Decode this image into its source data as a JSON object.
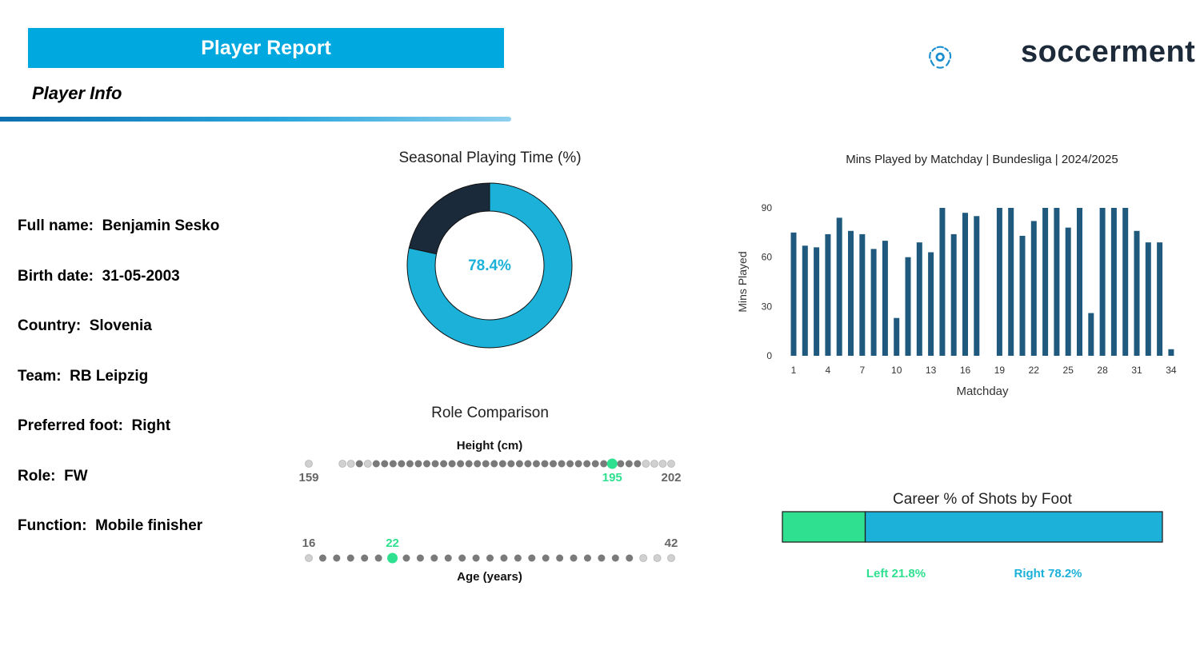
{
  "header": {
    "banner_title": "Player Report",
    "section_title": "Player Info",
    "logo_text": "soccerment",
    "brand_color": "#00a8e0"
  },
  "player_info": [
    {
      "label": "Full name:",
      "value": "Benjamin Sesko"
    },
    {
      "label": "Birth date:",
      "value": "31-05-2003"
    },
    {
      "label": "Country:",
      "value": "Slovenia"
    },
    {
      "label": "Team:",
      "value": "RB Leipzig"
    },
    {
      "label": "Preferred foot:",
      "value": "Right"
    },
    {
      "label": "Role:",
      "value": "FW"
    },
    {
      "label": "Function:",
      "value": "Mobile finisher"
    }
  ],
  "chart_data": [
    {
      "type": "pie",
      "title": "Seasonal Playing Time (%)",
      "center_label": "78.4%",
      "slices": [
        {
          "value": 78.4,
          "color": "#1cb1d9"
        },
        {
          "value": 21.6,
          "color": "#1b2a3b"
        }
      ]
    },
    {
      "type": "bar",
      "title": "Mins Played by Matchday | Bundesliga | 2024/2025",
      "xlabel": "Matchday",
      "ylabel": "Mins Played",
      "ylim": [
        0,
        90
      ],
      "yticks": [
        0,
        30,
        60,
        90
      ],
      "xticks": [
        1,
        4,
        7,
        10,
        13,
        16,
        19,
        22,
        25,
        28,
        31,
        34
      ],
      "categories": [
        1,
        2,
        3,
        4,
        5,
        6,
        7,
        8,
        9,
        10,
        11,
        12,
        13,
        14,
        15,
        16,
        17,
        18,
        19,
        20,
        21,
        22,
        23,
        24,
        25,
        26,
        27,
        28,
        29,
        30,
        31,
        32,
        33,
        34
      ],
      "values": [
        75,
        67,
        66,
        74,
        84,
        76,
        74,
        65,
        70,
        23,
        60,
        69,
        63,
        90,
        74,
        87,
        85,
        0,
        90,
        90,
        73,
        82,
        90,
        90,
        78,
        90,
        26,
        90,
        90,
        90,
        76,
        69,
        69,
        4
      ],
      "color": "#1f5a7e"
    },
    {
      "type": "scatter",
      "title": "Role Comparison",
      "panels": [
        {
          "label": "Height (cm)",
          "min": 159,
          "max": 202,
          "player_value": 195,
          "points": [
            159,
            163,
            164,
            165,
            166,
            167,
            168,
            169,
            170,
            171,
            172,
            173,
            174,
            175,
            176,
            177,
            178,
            179,
            180,
            181,
            182,
            183,
            184,
            185,
            186,
            187,
            188,
            189,
            190,
            191,
            192,
            193,
            194,
            195,
            196,
            197,
            198,
            199,
            200,
            201,
            202
          ],
          "light_values": [
            159,
            163,
            164,
            166,
            199,
            200,
            201,
            202
          ]
        },
        {
          "label": "Age (years)",
          "min": 16,
          "max": 42,
          "player_value": 22,
          "points": [
            16,
            17,
            18,
            19,
            20,
            21,
            22,
            23,
            24,
            25,
            26,
            27,
            28,
            29,
            30,
            31,
            32,
            33,
            34,
            35,
            36,
            37,
            38,
            39,
            40,
            41,
            42
          ],
          "light_values": [
            16,
            40,
            41,
            42
          ]
        }
      ],
      "highlight_color": "#2ee08f"
    },
    {
      "type": "bar",
      "title": "Career % of Shots by Foot",
      "series": [
        {
          "name": "Left",
          "value": 21.8,
          "label": "Left 21.8%",
          "color": "#2ee08f"
        },
        {
          "name": "Right",
          "value": 78.2,
          "label": "Right 78.2%",
          "color": "#1cb1d9"
        }
      ]
    }
  ]
}
